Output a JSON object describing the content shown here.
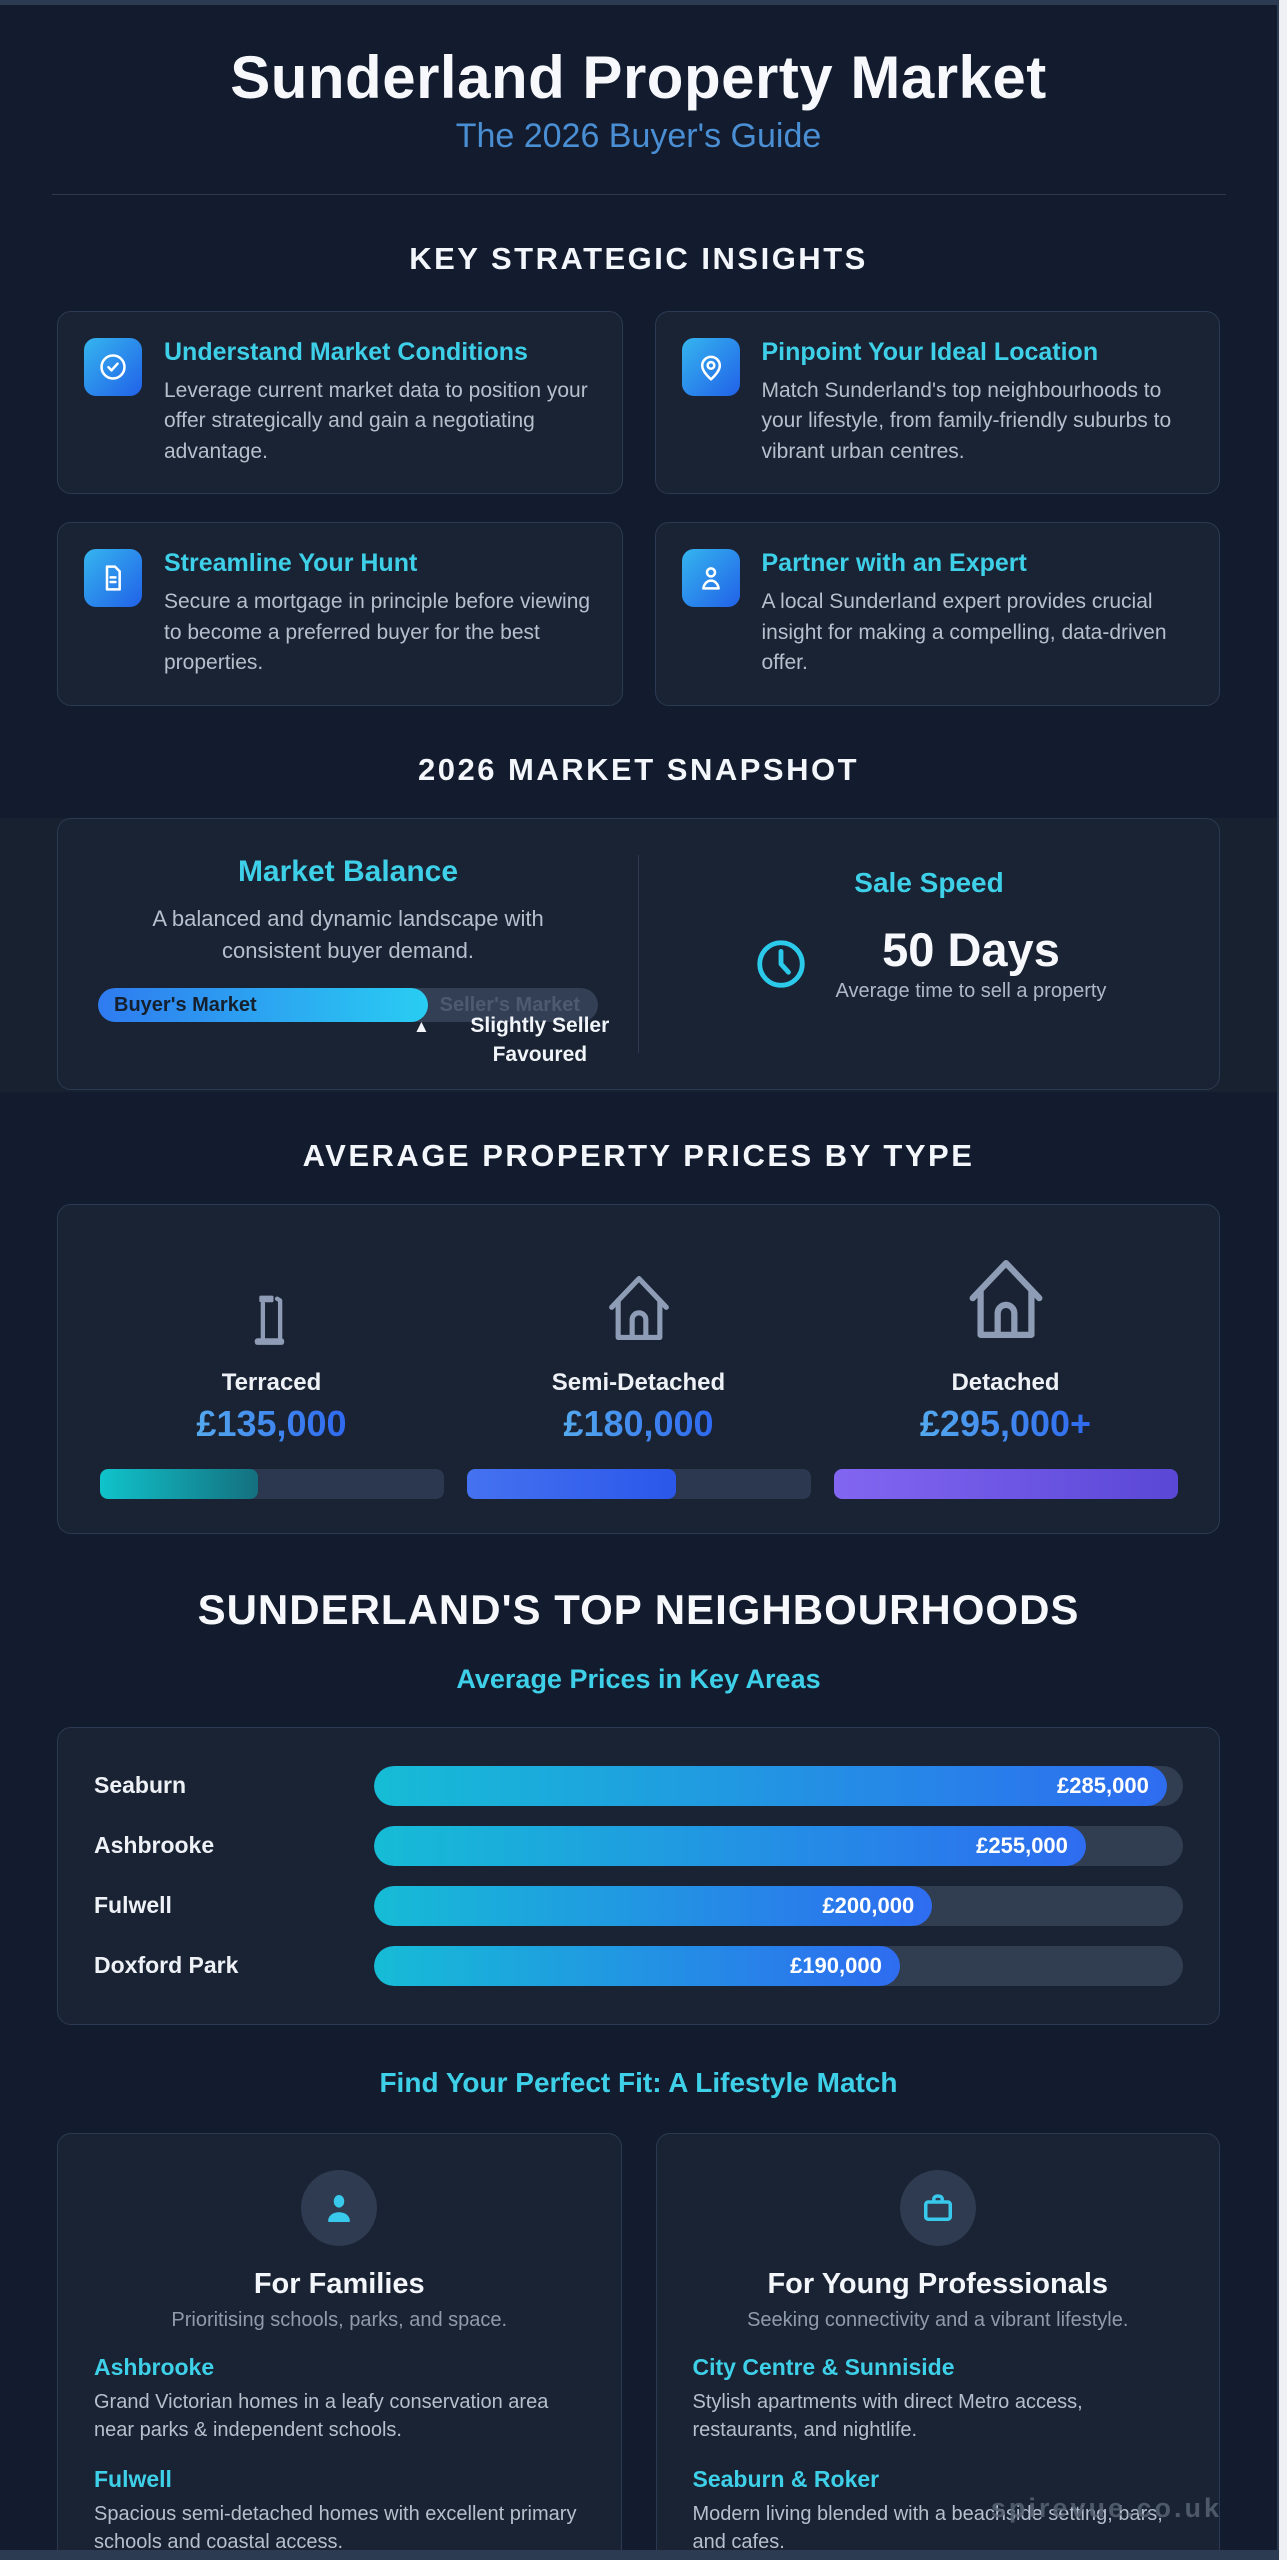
{
  "header": {
    "title": "Sunderland Property Market",
    "subtitle": "The 2026 Buyer's Guide"
  },
  "insights": {
    "heading": "KEY STRATEGIC INSIGHTS",
    "cards": [
      {
        "icon": "check-circle-icon",
        "title": "Understand Market Conditions",
        "body": "Leverage current market data to position your offer strategically and gain a negotiating advantage."
      },
      {
        "icon": "location-pin-icon",
        "title": "Pinpoint Your Ideal Location",
        "body": "Match Sunderland's top neighbourhoods to your lifestyle, from family-friendly suburbs to vibrant urban centres."
      },
      {
        "icon": "document-icon",
        "title": "Streamline Your Hunt",
        "body": "Secure a mortgage in principle before viewing to become a preferred buyer for the best properties."
      },
      {
        "icon": "person-icon",
        "title": "Partner with an Expert",
        "body": "A local Sunderland expert provides crucial insight for making a compelling, data-driven offer."
      }
    ]
  },
  "snapshot": {
    "heading": "2026 MARKET SNAPSHOT",
    "balance": {
      "title": "Market Balance",
      "body": "A balanced and dynamic landscape with consistent buyer demand.",
      "left_label": "Buyer's Market",
      "right_label": "Seller's Market",
      "marker_icon": "▲",
      "marker_label": "Slightly Seller Favoured",
      "fill_pct": "66%"
    },
    "speed": {
      "title": "Sale Speed",
      "value": "50 Days",
      "caption": "Average time to sell a property"
    }
  },
  "prices": {
    "heading": "AVERAGE PROPERTY PRICES BY TYPE",
    "items": [
      {
        "type": "Terraced",
        "price": "£135,000",
        "fill": "46%",
        "color": "#10c3cb"
      },
      {
        "type": "Semi-Detached",
        "price": "£180,000",
        "fill": "61%",
        "color": "#2b57ea"
      },
      {
        "type": "Detached",
        "price": "£295,000+",
        "fill": "100%",
        "color": "#5a47d6"
      }
    ]
  },
  "neighbourhoods": {
    "heading": "SUNDERLAND'S TOP NEIGHBOURHOODS",
    "subheading": "Average Prices in Key Areas",
    "rows": [
      {
        "name": "Seaburn",
        "value": "£285,000",
        "fill": "98%"
      },
      {
        "name": "Ashbrooke",
        "value": "£255,000",
        "fill": "88%"
      },
      {
        "name": "Fulwell",
        "value": "£200,000",
        "fill": "69%"
      },
      {
        "name": "Doxford Park",
        "value": "£190,000",
        "fill": "65%"
      }
    ]
  },
  "lifestyle": {
    "heading": "Find Your Perfect Fit: A Lifestyle Match",
    "cards": [
      {
        "icon": "person-avatar-icon",
        "title": "For Families",
        "subtitle": "Prioritising schools, parks, and space.",
        "sections": [
          {
            "name": "Ashbrooke",
            "body": "Grand Victorian homes in a leafy conservation area near parks & independent schools."
          },
          {
            "name": "Fulwell",
            "body": "Spacious semi-detached homes with excellent primary schools and coastal access."
          }
        ]
      },
      {
        "icon": "briefcase-icon",
        "title": "For Young Professionals",
        "subtitle": "Seeking connectivity and a vibrant lifestyle.",
        "sections": [
          {
            "name": "City Centre & Sunniside",
            "body": "Stylish apartments with direct Metro access, restaurants, and nightlife."
          },
          {
            "name": "Seaburn & Roker",
            "body": "Modern living blended with a beachside setting, bars, and cafes."
          }
        ]
      }
    ]
  },
  "watermark": "spirevue.co.uk",
  "colors": {
    "background": "#131c2e",
    "card": "#1a2333",
    "accent_cyan": "#3ed0e8",
    "accent_blue": "#2e68f0",
    "subtitle_blue": "#4a8fd4",
    "body_grey": "#b6bfcc"
  },
  "chart_data": [
    {
      "type": "bar",
      "title": "Average Prices in Key Areas",
      "orientation": "horizontal",
      "categories": [
        "Seaburn",
        "Ashbrooke",
        "Fulwell",
        "Doxford Park"
      ],
      "values": [
        285000,
        255000,
        200000,
        190000
      ],
      "value_labels": [
        "£285,000",
        "£255,000",
        "£200,000",
        "£190,000"
      ],
      "xlim": [
        0,
        290000
      ],
      "grid": false,
      "legend": false
    },
    {
      "type": "bar",
      "title": "Average Property Prices by Type",
      "categories": [
        "Terraced",
        "Semi-Detached",
        "Detached"
      ],
      "values": [
        135000,
        180000,
        295000
      ],
      "value_labels": [
        "£135,000",
        "£180,000",
        "£295,000+"
      ],
      "xlim": [
        0,
        295000
      ],
      "grid": false,
      "legend": false
    },
    {
      "type": "gauge",
      "title": "Market Balance",
      "scale_labels": [
        "Buyer's Market",
        "Seller's Market"
      ],
      "value_pct": 66,
      "annotation": "Slightly Seller Favoured"
    }
  ]
}
